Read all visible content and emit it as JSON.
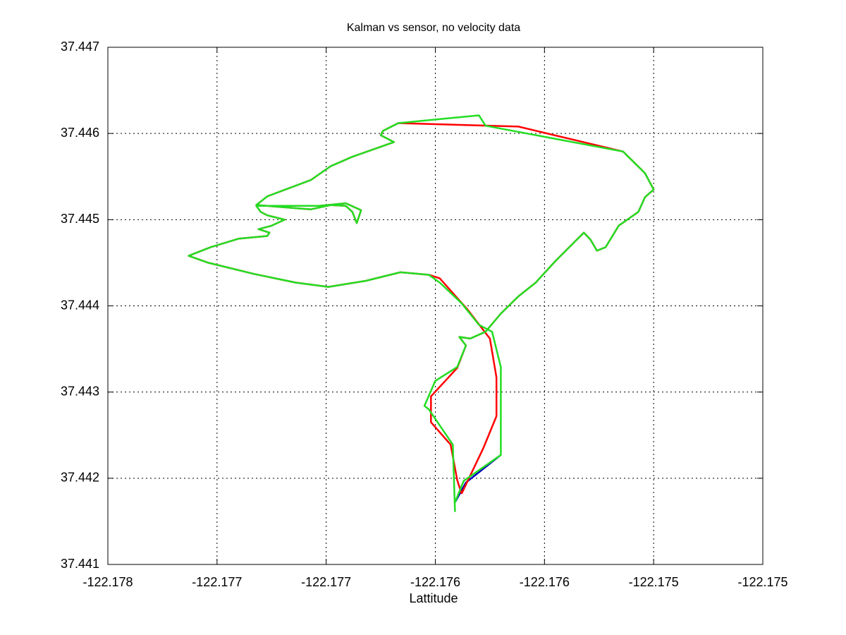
{
  "chart_data": {
    "type": "line",
    "title": "Kalman vs sensor, no velocity data",
    "x_label": "Lattitude",
    "xlim": [
      -122.178,
      -122.175
    ],
    "ylim": [
      37.441,
      37.447
    ],
    "xticks": [
      -122.178,
      {
        "value": -122.1775,
        "label": "-122.177"
      },
      -122.177,
      {
        "value": -122.1765,
        "label": "-122.176"
      },
      -122.176,
      {
        "value": -122.1755,
        "label": "-122.175"
      },
      -122.175
    ],
    "yticks": [
      37.441,
      37.442,
      37.443,
      37.444,
      37.445,
      37.446,
      37.447
    ],
    "grid": true,
    "series": [
      {
        "color": "#0000c0",
        "x": [
          -122.1762,
          -122.17636,
          -122.17641
        ],
        "y": [
          37.44227,
          37.44195,
          37.44172
        ]
      },
      {
        "color": "#ff0000",
        "x": [
          -122.17638,
          -122.1764,
          -122.17643,
          -122.17652,
          -122.17652,
          -122.1764,
          -122.17636,
          -122.17639,
          -122.17634,
          -122.17627,
          -122.1762,
          -122.17612,
          -122.17604,
          -122.17595,
          -122.17582,
          -122.17579,
          -122.17576,
          -122.17572,
          -122.17566,
          -122.17557,
          -122.17554,
          -122.1755,
          -122.17554,
          -122.17564,
          -122.17612,
          -122.17667,
          -122.17674,
          -122.17675,
          -122.17669,
          -122.17688,
          -122.17698,
          -122.17707,
          -122.17727,
          -122.17732,
          -122.17707,
          -122.17698,
          -122.17691,
          -122.17688,
          -122.17686,
          -122.17684,
          -122.17691,
          -122.17703,
          -122.17732,
          -122.1773,
          -122.17727,
          -122.17719,
          -122.17725,
          -122.17731,
          -122.17726,
          -122.17727,
          -122.1774,
          -122.17753,
          -122.17763,
          -122.17754,
          -122.17733,
          -122.17714,
          -122.17699,
          -122.17682,
          -122.17666,
          -122.17653,
          -122.17648,
          -122.17635,
          -122.17625,
          -122.17622,
          -122.17622,
          -122.17628,
          -122.17638
        ],
        "y": [
          37.44182,
          37.44198,
          37.44239,
          37.44265,
          37.44295,
          37.44328,
          37.44354,
          37.44364,
          37.44362,
          37.4437,
          37.44391,
          37.44411,
          37.44427,
          37.44452,
          37.44485,
          37.44477,
          37.44464,
          37.44468,
          37.44493,
          37.44509,
          37.44526,
          37.44535,
          37.44554,
          37.44579,
          37.44608,
          37.44612,
          37.44603,
          37.44598,
          37.4459,
          37.44573,
          37.44562,
          37.44546,
          37.44527,
          37.44517,
          37.44512,
          37.44517,
          37.44516,
          37.44509,
          37.44496,
          37.44511,
          37.44519,
          37.44516,
          37.44516,
          37.44509,
          37.44505,
          37.445,
          37.44493,
          37.44489,
          37.44485,
          37.44481,
          37.44478,
          37.44468,
          37.44458,
          37.4445,
          37.44437,
          37.44427,
          37.44422,
          37.44429,
          37.44439,
          37.44436,
          37.44432,
          37.44395,
          37.44362,
          37.44317,
          37.44272,
          37.44235,
          37.44182
        ]
      },
      {
        "color": "#22dd22",
        "x": [
          -122.17641,
          -122.17642,
          -122.17653,
          -122.17655,
          -122.1765,
          -122.1764,
          -122.17636,
          -122.17639,
          -122.17634,
          -122.17627,
          -122.1762,
          -122.17612,
          -122.17604,
          -122.17595,
          -122.17582,
          -122.17579,
          -122.17576,
          -122.17572,
          -122.17566,
          -122.17557,
          -122.17554,
          -122.1755,
          -122.17554,
          -122.17564,
          -122.17627,
          -122.1763,
          -122.17667,
          -122.17674,
          -122.17675,
          -122.17669,
          -122.17688,
          -122.17698,
          -122.17707,
          -122.17727,
          -122.17732,
          -122.17707,
          -122.17698,
          -122.17691,
          -122.17688,
          -122.17686,
          -122.17684,
          -122.17691,
          -122.17703,
          -122.17732,
          -122.1773,
          -122.17727,
          -122.17719,
          -122.17725,
          -122.17731,
          -122.17726,
          -122.17727,
          -122.1774,
          -122.17753,
          -122.17763,
          -122.17754,
          -122.17733,
          -122.17714,
          -122.17699,
          -122.17682,
          -122.17666,
          -122.17653,
          -122.17648,
          -122.17638,
          -122.1763,
          -122.17624,
          -122.1762,
          -122.1762,
          -122.17637,
          -122.17641
        ],
        "y": [
          37.44161,
          37.44239,
          37.4428,
          37.44284,
          37.44313,
          37.44329,
          37.44354,
          37.44364,
          37.44362,
          37.4437,
          37.44391,
          37.44411,
          37.44427,
          37.44452,
          37.44485,
          37.44477,
          37.44464,
          37.44468,
          37.44493,
          37.44509,
          37.44526,
          37.44535,
          37.44554,
          37.44579,
          37.44609,
          37.44621,
          37.44612,
          37.44603,
          37.44598,
          37.4459,
          37.44573,
          37.44562,
          37.44546,
          37.44527,
          37.44517,
          37.44512,
          37.44517,
          37.44516,
          37.44509,
          37.44496,
          37.44511,
          37.44519,
          37.44516,
          37.44516,
          37.44509,
          37.44505,
          37.445,
          37.44493,
          37.44489,
          37.44485,
          37.44481,
          37.44478,
          37.44468,
          37.44458,
          37.4445,
          37.44437,
          37.44427,
          37.44422,
          37.44429,
          37.44439,
          37.44436,
          37.44427,
          37.44403,
          37.44378,
          37.4437,
          37.44329,
          37.44227,
          37.44197,
          37.44172
        ]
      }
    ]
  }
}
